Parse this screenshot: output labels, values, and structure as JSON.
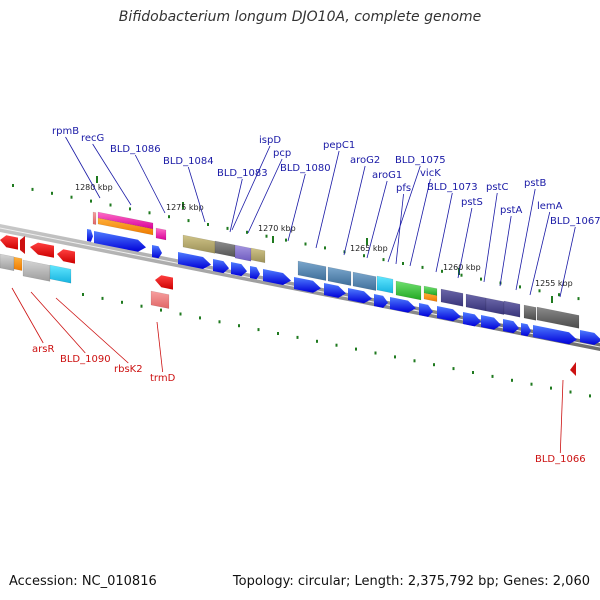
{
  "title": "Bifidobacterium longum DJO10A, complete genome",
  "footer": {
    "accession": "Accession: NC_010816",
    "summary": "Topology: circular; Length: 2,375,792 bp; Genes: 2,060"
  },
  "colors": {
    "label_forward": "#1a1aa6",
    "label_reverse": "#cc1111",
    "arrow_blue": "#0000ff",
    "tick_green": "#1f7a1f",
    "backbone": "#8c8c8c"
  },
  "kbp_labels": [
    "1280 kbp",
    "1275 kbp",
    "1270 kbp",
    "1265 kbp",
    "1260 kbp",
    "1255 kbp"
  ],
  "forward_labels": [
    "rpmB",
    "recG",
    "BLD_1086",
    "BLD_1084",
    "ispD",
    "pcp",
    "BLD_1083",
    "BLD_1080",
    "pepC1",
    "aroG2",
    "aroG1",
    "BLD_1075",
    "pfs",
    "vicK",
    "BLD_1073",
    "pstS",
    "pstC",
    "pstA",
    "pstB",
    "lemA",
    "BLD_1067"
  ],
  "reverse_labels": [
    "arsR",
    "BLD_1090",
    "rbsK2",
    "trmD",
    "BLD_1066"
  ]
}
